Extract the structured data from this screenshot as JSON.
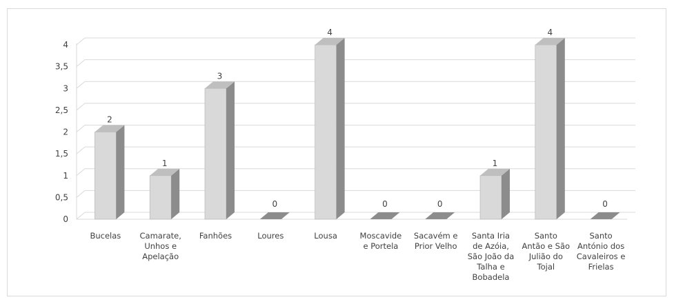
{
  "chart_data": {
    "type": "bar",
    "style": "3d-column",
    "categories": [
      "Bucelas",
      "Camarate, Unhos e Apelação",
      "Fanhões",
      "Loures",
      "Lousa",
      "Moscavide e Portela",
      "Sacavém e Prior Velho",
      "Santa Iria de Azóia, São João da Talha e Bobadela",
      "Santo Antão e São Julião do Tojal",
      "Santo António dos Cavaleiros e Frielas"
    ],
    "category_lines": [
      [
        "Bucelas"
      ],
      [
        "Camarate,",
        "Unhos e",
        "Apelação"
      ],
      [
        "Fanhões"
      ],
      [
        "Loures"
      ],
      [
        "Lousa"
      ],
      [
        "Moscavide",
        "e Portela"
      ],
      [
        "Sacavém e",
        "Prior Velho"
      ],
      [
        "Santa Iria",
        "de Azóia,",
        "São João da",
        "Talha e",
        "Bobadela"
      ],
      [
        "Santo",
        "Antão e São",
        "Julião do",
        "Tojal"
      ],
      [
        "Santo",
        "António dos",
        "Cavaleiros e",
        "Frielas"
      ]
    ],
    "values": [
      2,
      1,
      3,
      0,
      4,
      0,
      0,
      1,
      4,
      0
    ],
    "data_labels": [
      "2",
      "1",
      "3",
      "0",
      "4",
      "0",
      "0",
      "1",
      "4",
      "0"
    ],
    "ylim": [
      0,
      4
    ],
    "y_ticks": [
      "0",
      "0,5",
      "1",
      "1,5",
      "2",
      "2,5",
      "3",
      "3,5",
      "4"
    ],
    "y_tick_values": [
      0,
      0.5,
      1,
      1.5,
      2,
      2.5,
      3,
      3.5,
      4
    ],
    "grid": true,
    "legend": "none",
    "colors": {
      "front": "#d9d9d9",
      "side": "#8c8c8c",
      "top": "#bfbfbf",
      "grid": "#d9d9d9",
      "text": "#404040"
    }
  }
}
